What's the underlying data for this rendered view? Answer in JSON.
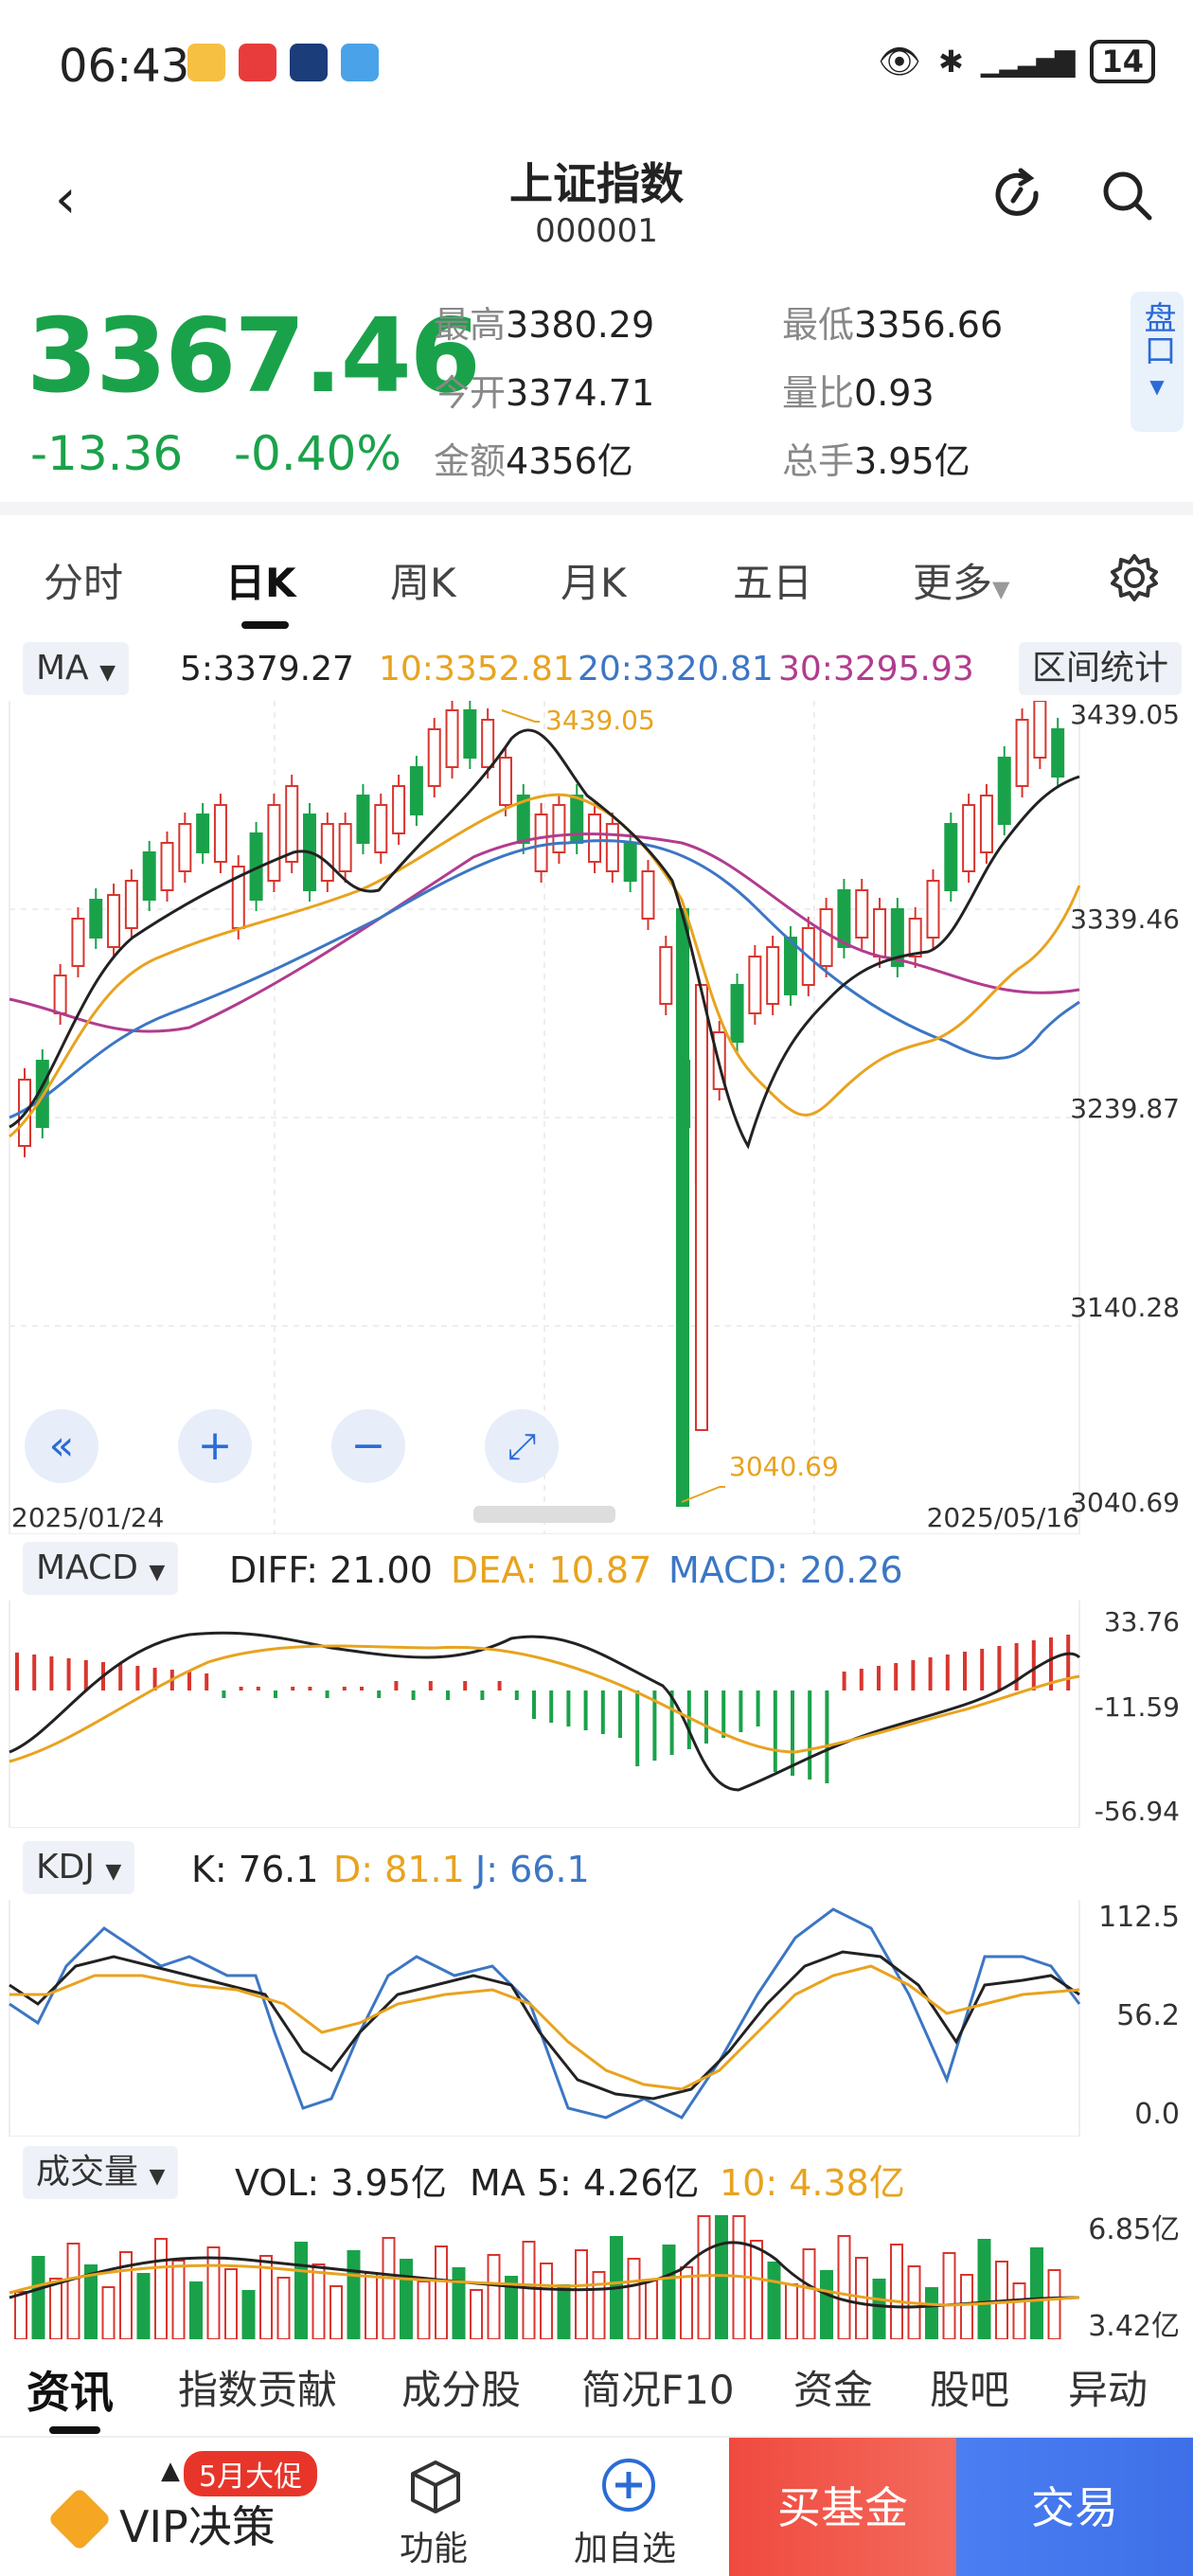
{
  "status": {
    "time": "06:43",
    "battery": "14"
  },
  "header": {
    "title": "上证指数",
    "code": "000001"
  },
  "quote": {
    "price": "3367.46",
    "change": "-13.36",
    "change_pct": "-0.40%",
    "high_label": "最高",
    "high": "3380.29",
    "low_label": "最低",
    "low": "3356.66",
    "open_label": "今开",
    "open": "3374.71",
    "ratio_label": "量比",
    "ratio": "0.93",
    "amount_label": "金额",
    "amount": "4356亿",
    "turnover_label": "总手",
    "turnover": "3.95亿",
    "pankou": "盘口"
  },
  "tabs": [
    "分时",
    "日K",
    "周K",
    "月K",
    "五日",
    "更多"
  ],
  "ma": {
    "select": "MA",
    "ma5": "5:3379.27",
    "ma10": "10:3352.81",
    "ma20": "20:3320.81",
    "ma30": "30:3295.93",
    "stats": "区间统计"
  },
  "kchart": {
    "y_labels": [
      "3439.05",
      "3339.46",
      "3239.87",
      "3140.28",
      "3040.69"
    ],
    "high_mark": "3439.05",
    "low_mark": "3040.69",
    "date_start": "2025/01/24",
    "date_end": "2025/05/16"
  },
  "macd": {
    "select": "MACD",
    "diff": "DIFF: 21.00",
    "dea": "DEA: 10.87",
    "macd": "MACD: 20.26",
    "y_labels": [
      "33.76",
      "-11.59",
      "-56.94"
    ]
  },
  "kdj": {
    "select": "KDJ",
    "k": "K: 76.1",
    "d": "D: 81.1",
    "j": "J: 66.1",
    "y_labels": [
      "112.5",
      "56.2",
      "0.0"
    ]
  },
  "vol": {
    "select": "成交量",
    "vol": "VOL: 3.95亿",
    "ma5": "MA 5: 4.26亿",
    "ma10": "10: 4.38亿",
    "y_labels": [
      "6.85亿",
      "3.42亿"
    ]
  },
  "bottom_tabs": [
    "资讯",
    "指数贡献",
    "成分股",
    "简况F10",
    "资金",
    "股吧",
    "异动"
  ],
  "footer": {
    "promo": "5月大促",
    "vip": "VIP决策",
    "func": "功能",
    "add": "加自选",
    "buy": "买基金",
    "trade": "交易"
  },
  "colors": {
    "up": "#d8362f",
    "down": "#1aa24a",
    "ma5": "#222222",
    "ma10": "#e8a31f",
    "ma20": "#3c76c4",
    "ma30": "#b13c8e",
    "accent": "#2b6bd6"
  }
}
